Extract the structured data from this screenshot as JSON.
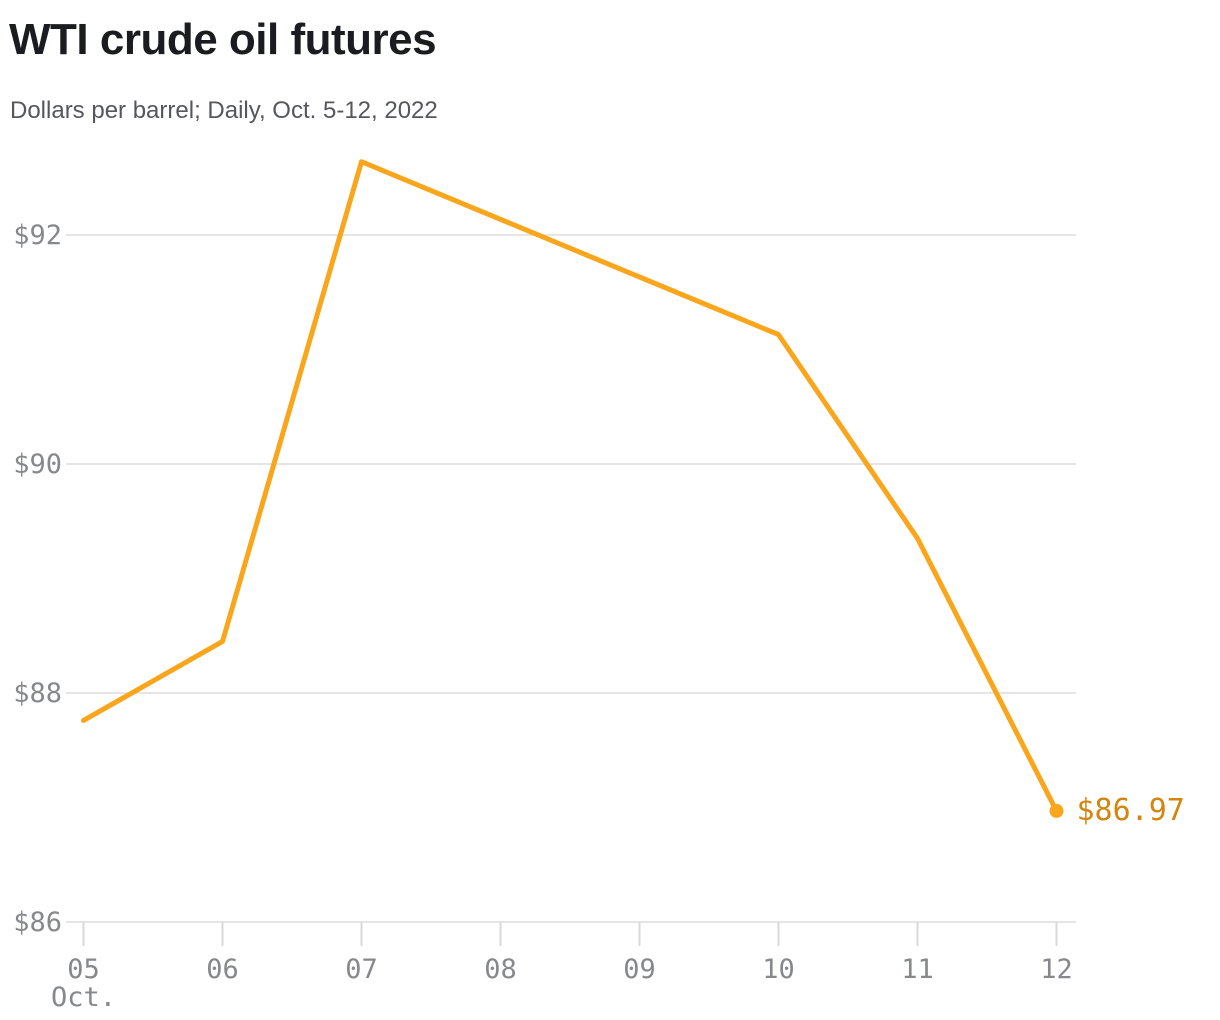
{
  "header": {
    "title": "WTI crude oil futures",
    "subtitle": "Dollars per barrel; Daily, Oct. 5-12, 2022"
  },
  "chart_data": {
    "type": "line",
    "title": "WTI crude oil futures",
    "subtitle": "Dollars per barrel; Daily, Oct. 5-12, 2022",
    "ylabel": "Dollars per barrel",
    "xlabel": "",
    "ylim": [
      86,
      92.8
    ],
    "grid": "horizontal",
    "legend": "none",
    "x_axis": {
      "start_day": 5,
      "end_day": 12,
      "month_label": "Oct."
    },
    "x_ticks": [
      {
        "day": 5,
        "label": "05"
      },
      {
        "day": 6,
        "label": "06"
      },
      {
        "day": 7,
        "label": "07"
      },
      {
        "day": 8,
        "label": "08"
      },
      {
        "day": 9,
        "label": "09"
      },
      {
        "day": 10,
        "label": "10"
      },
      {
        "day": 11,
        "label": "11"
      },
      {
        "day": 12,
        "label": "12"
      }
    ],
    "y_ticks": [
      {
        "value": 92,
        "label": "$92"
      },
      {
        "value": 90,
        "label": "$90"
      },
      {
        "value": 88,
        "label": "$88"
      },
      {
        "value": 86,
        "label": "$86"
      }
    ],
    "series": [
      {
        "name": "WTI crude oil futures price",
        "points": [
          {
            "date": "Oct. 5, 2022",
            "day": 5,
            "value": 87.76
          },
          {
            "date": "Oct. 6, 2022",
            "day": 6,
            "value": 88.45
          },
          {
            "date": "Oct. 7, 2022",
            "day": 7,
            "value": 92.64
          },
          {
            "date": "Oct. 10, 2022",
            "day": 10,
            "value": 91.13
          },
          {
            "date": "Oct. 11, 2022",
            "day": 11,
            "value": 89.35
          },
          {
            "date": "Oct. 12, 2022",
            "day": 12,
            "value": 86.97
          }
        ]
      }
    ],
    "end_label": {
      "text": "$86.97",
      "value": 86.97,
      "day": 12
    },
    "colors": {
      "line": "#faa61c",
      "point": "#faa61c",
      "end_label": "#d3850f",
      "gridline": "#e5e5e6",
      "tick": "#d9dadb",
      "axis_text": "#86888b",
      "title_text": "#1a1c1f",
      "subtitle_text": "#55575a"
    }
  }
}
